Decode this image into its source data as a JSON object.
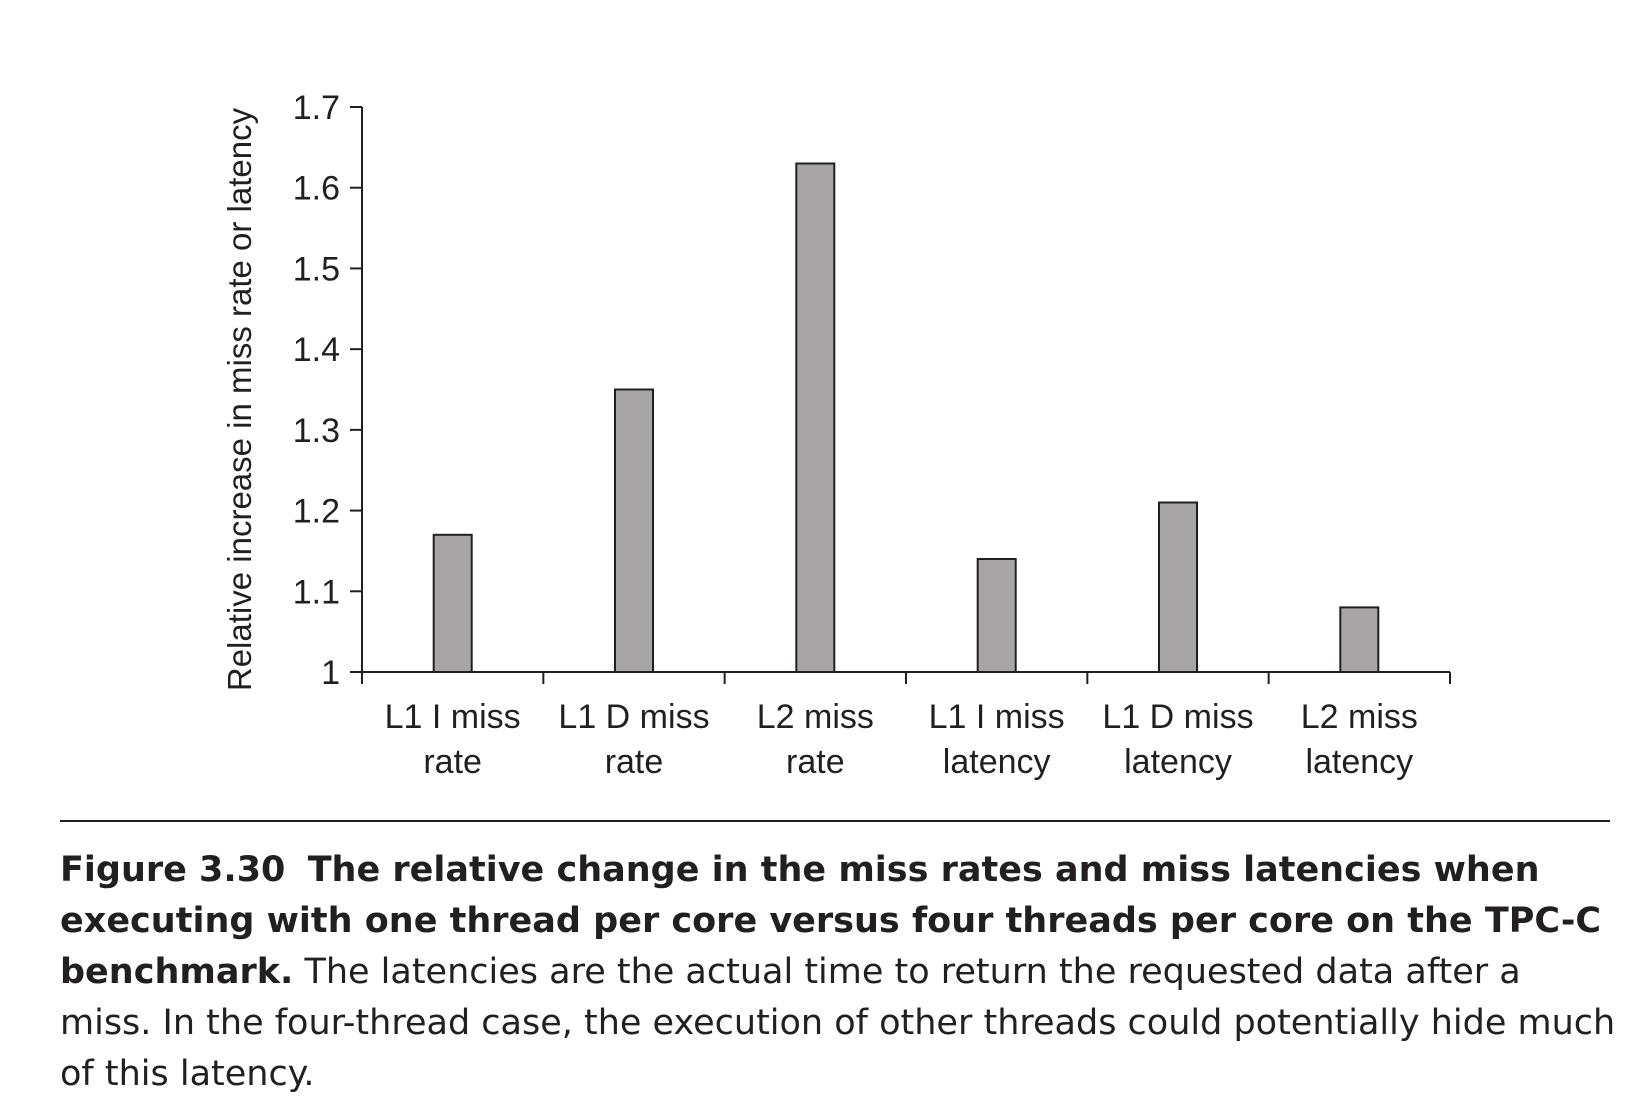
{
  "chart_data": {
    "type": "bar",
    "ylabel": "Relative increase in miss rate or latency",
    "xlabel": "",
    "ylim": [
      1,
      1.7
    ],
    "yticks": [
      "1",
      "1.1",
      "1.2",
      "1.3",
      "1.4",
      "1.5",
      "1.6",
      "1.7"
    ],
    "categories": [
      [
        "L1 I miss",
        "rate"
      ],
      [
        "L1 D miss",
        "rate"
      ],
      [
        "L2 miss",
        "rate"
      ],
      [
        "L1 I miss",
        "latency"
      ],
      [
        "L1 D miss",
        "latency"
      ],
      [
        "L2 miss",
        "latency"
      ]
    ],
    "values": [
      1.17,
      1.35,
      1.63,
      1.14,
      1.21,
      1.08
    ],
    "bar_color": "#a7a5a6",
    "bar_stroke": "#231f20",
    "grid": false
  },
  "caption": {
    "figure_number": "Figure 3.30",
    "bold_text": "The relative change in the miss rates and miss latencies when executing with one thread per core versus four threads per core on the TPC-C benchmark.",
    "body_text": "The latencies are the actual time to return the requested data after a miss. In the four-thread case, the execution of other threads could potentially hide much of this latency."
  }
}
